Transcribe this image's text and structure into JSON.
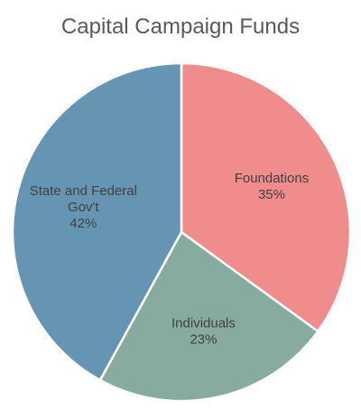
{
  "chart_data": {
    "type": "pie",
    "title": "Capital Campaign Funds",
    "slices": [
      {
        "label_lines": [
          "Foundations"
        ],
        "value": 35,
        "value_label": "35%",
        "color": "#f08c8c"
      },
      {
        "label_lines": [
          "Individuals"
        ],
        "value": 23,
        "value_label": "23%",
        "color": "#88aba0"
      },
      {
        "label_lines": [
          "State and Federal",
          "Gov't"
        ],
        "value": 42,
        "value_label": "42%",
        "color": "#6695b3"
      }
    ],
    "start_angle_deg": 0,
    "direction": "clockwise",
    "legend": "none"
  }
}
